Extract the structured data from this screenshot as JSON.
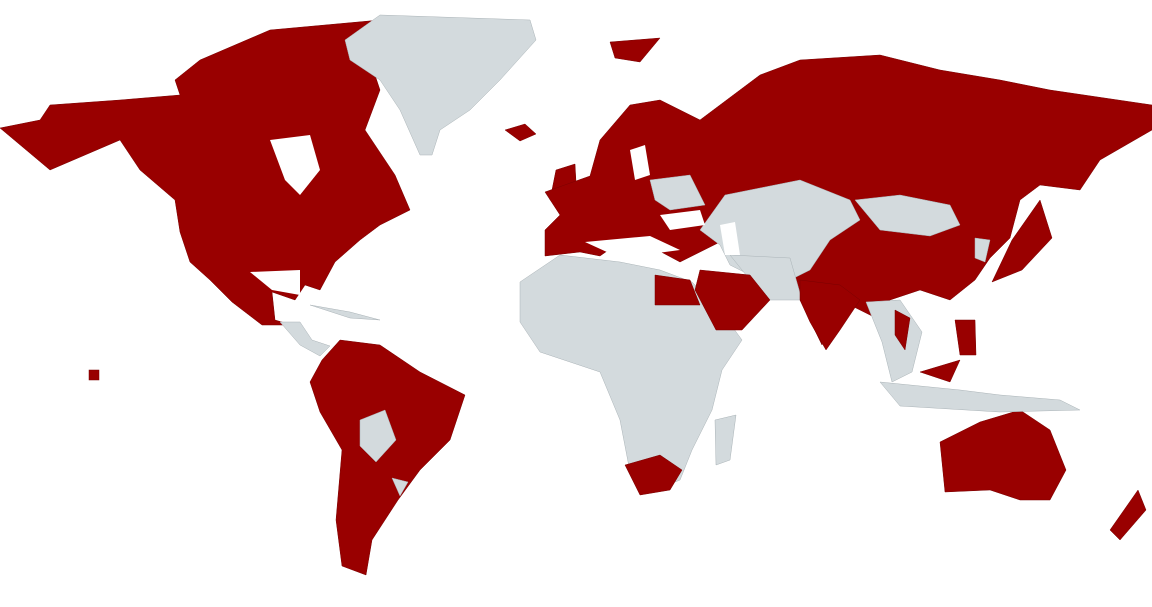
{
  "map": {
    "highlight_color": "#990000",
    "base_color": "#d3dadd",
    "background": "#ffffff",
    "projection": "world"
  }
}
